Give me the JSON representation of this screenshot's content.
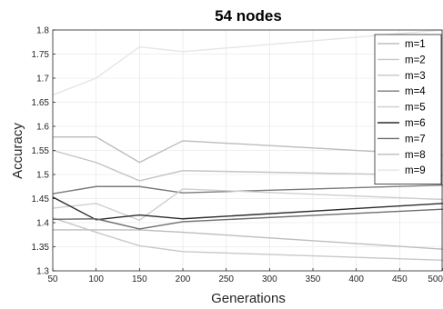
{
  "chart_data": {
    "type": "line",
    "title": "54 nodes",
    "xlabel": "Generations",
    "ylabel": "Accuracy",
    "xlim": [
      50,
      500
    ],
    "ylim": [
      1.3,
      1.8
    ],
    "x_ticks": [
      "50",
      "100",
      "150",
      "200",
      "250",
      "300",
      "350",
      "400",
      "450",
      "500"
    ],
    "y_ticks": [
      "1.3",
      "1.35",
      "1.4",
      "1.45",
      "1.5",
      "1.55",
      "1.6",
      "1.65",
      "1.7",
      "1.75",
      "1.8"
    ],
    "x": [
      50,
      100,
      150,
      200,
      500
    ],
    "grid": true,
    "legend_position": "top-right",
    "series": [
      {
        "name": "m=1",
        "color": "#bdbdbd",
        "values": [
          1.385,
          1.385,
          1.385,
          1.38,
          1.345
        ]
      },
      {
        "name": "m=2",
        "color": "#c8c8c8",
        "values": [
          1.41,
          1.38,
          1.352,
          1.34,
          1.322
        ]
      },
      {
        "name": "m=3",
        "color": "#c4c4c4",
        "values": [
          1.55,
          1.525,
          1.487,
          1.508,
          1.498
        ]
      },
      {
        "name": "m=4",
        "color": "#7a7a7a",
        "values": [
          1.46,
          1.475,
          1.475,
          1.462,
          1.478
        ]
      },
      {
        "name": "m=5",
        "color": "#cfcfcf",
        "values": [
          1.43,
          1.44,
          1.405,
          1.47,
          1.448
        ]
      },
      {
        "name": "m=6",
        "color": "#2b2b2b",
        "values": [
          1.453,
          1.406,
          1.416,
          1.408,
          1.44
        ]
      },
      {
        "name": "m=7",
        "color": "#6e6e6e",
        "values": [
          1.407,
          1.408,
          1.387,
          1.402,
          1.428
        ]
      },
      {
        "name": "m=8",
        "color": "#bcbcbc",
        "values": [
          1.578,
          1.578,
          1.525,
          1.57,
          1.54
        ]
      },
      {
        "name": "m=9",
        "color": "#e6e6e6",
        "values": [
          1.665,
          1.7,
          1.765,
          1.755,
          1.8
        ]
      }
    ]
  }
}
